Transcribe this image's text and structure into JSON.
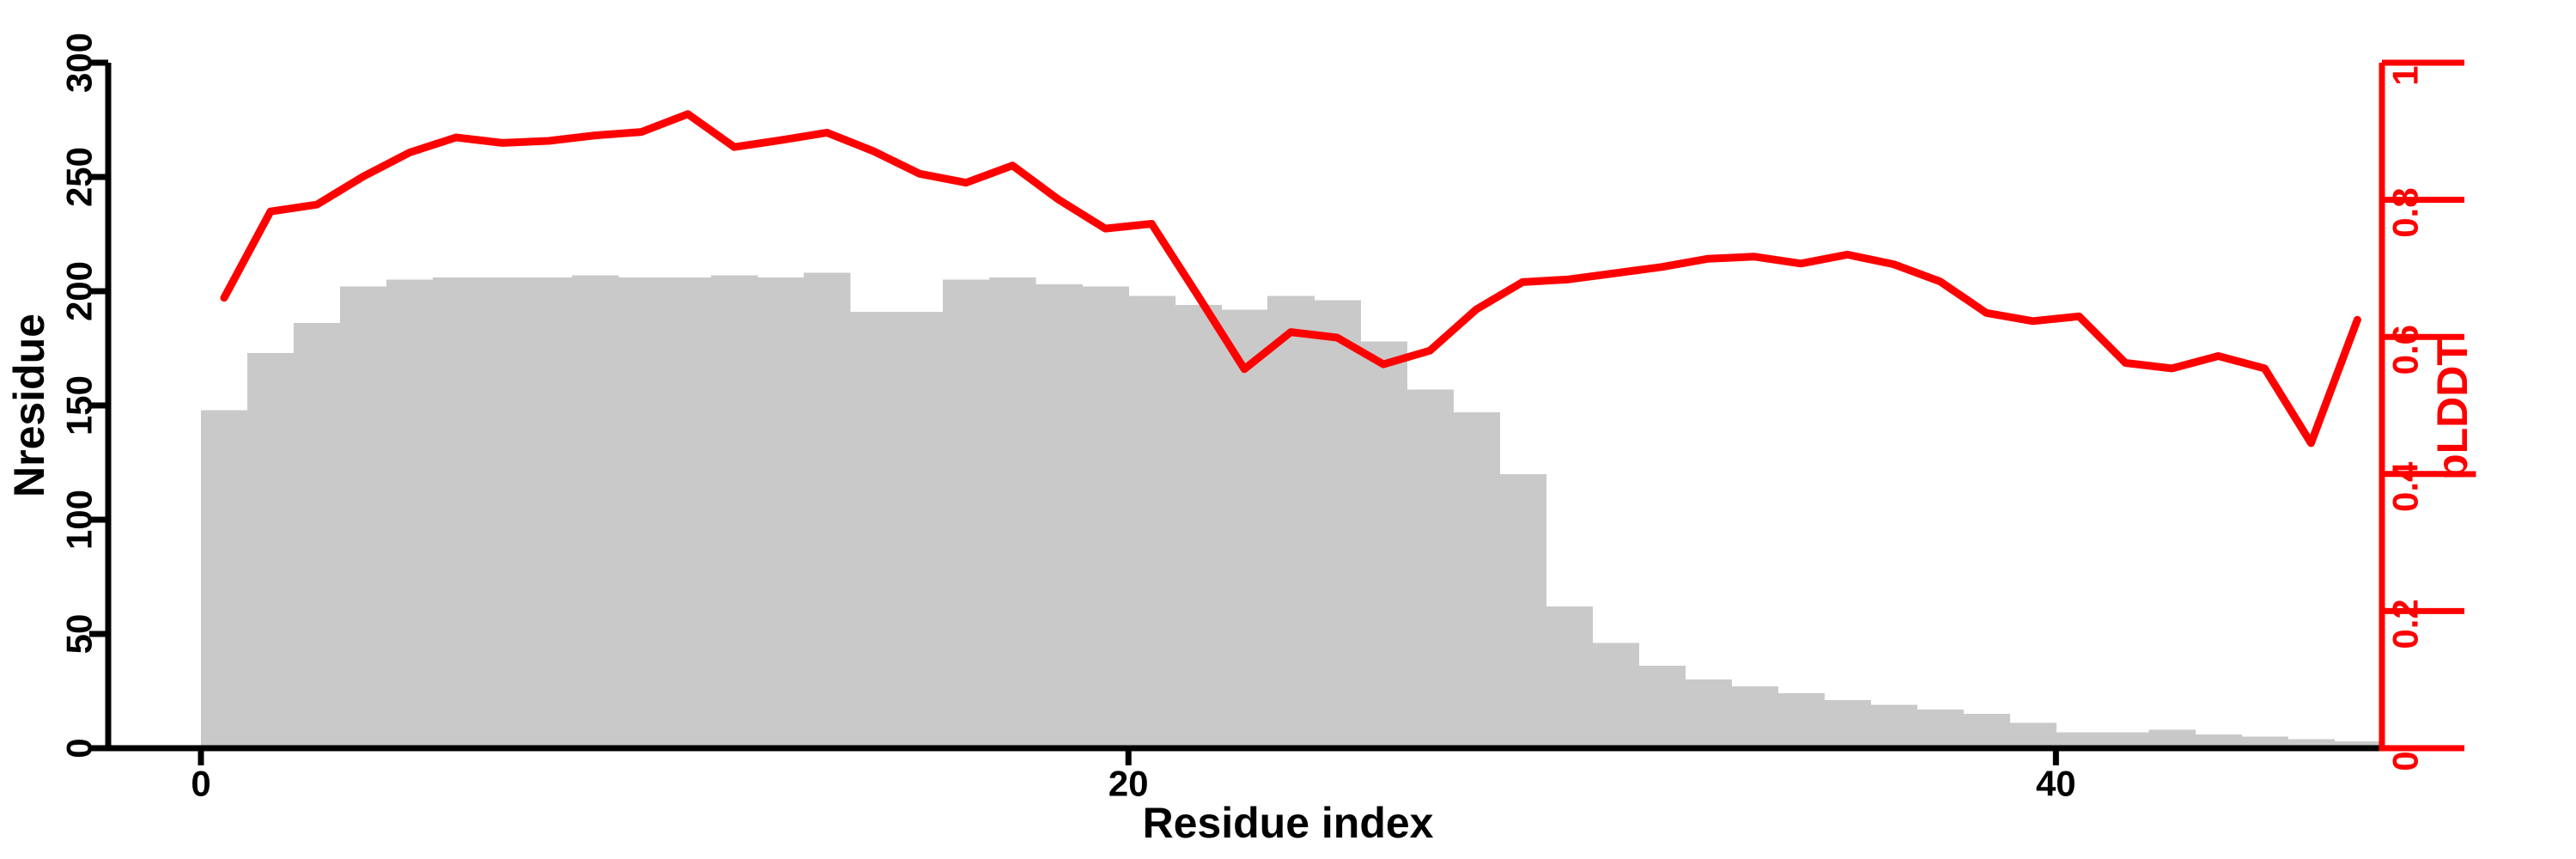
{
  "chart_data": {
    "type": "bar",
    "title": "",
    "xlabel": "Residue index",
    "ylabel_left": "Nresidue",
    "ylabel_right": "pLDDT",
    "x_range": [
      -2,
      47.03
    ],
    "y_left_range": [
      0,
      300
    ],
    "y_right_range": [
      0,
      1
    ],
    "x_ticks": [
      0,
      20,
      40
    ],
    "y_left_ticks": [
      0,
      50,
      100,
      150,
      200,
      250,
      300
    ],
    "y_right_ticks": [
      "0",
      "0.2",
      "0.4",
      "0.6",
      "0.8",
      "1"
    ],
    "grid": false,
    "legend": null,
    "colors": {
      "bar_fill": "#c9c9c9",
      "line": "#ff0000",
      "axis_left": "#000000",
      "axis_right": "#ff0000",
      "text": "#000000"
    },
    "bars": {
      "x_start": 0,
      "bin_width": 1,
      "values": [
        148,
        173,
        186,
        202,
        205,
        206,
        206,
        206,
        207,
        206,
        206,
        207,
        206,
        208,
        191,
        191,
        205,
        206,
        203,
        202,
        198,
        194,
        192,
        198,
        196,
        178,
        157,
        147,
        120,
        62,
        46,
        36,
        30,
        27,
        24,
        21,
        19,
        17,
        15,
        11,
        7,
        7,
        8,
        6,
        5,
        4,
        3
      ]
    },
    "line": {
      "x_start": 0.5,
      "x_step": 1,
      "values": [
        0.657,
        0.783,
        0.793,
        0.834,
        0.869,
        0.891,
        0.883,
        0.886,
        0.894,
        0.899,
        0.925,
        0.877,
        0.887,
        0.898,
        0.871,
        0.838,
        0.825,
        0.85,
        0.8,
        0.758,
        0.765,
        0.66,
        0.553,
        0.607,
        0.599,
        0.56,
        0.58,
        0.64,
        0.68,
        0.684,
        0.693,
        0.702,
        0.714,
        0.717,
        0.707,
        0.72,
        0.706,
        0.681,
        0.635,
        0.623,
        0.63,
        0.562,
        0.554,
        0.572,
        0.554,
        0.445,
        0.625
      ]
    }
  }
}
